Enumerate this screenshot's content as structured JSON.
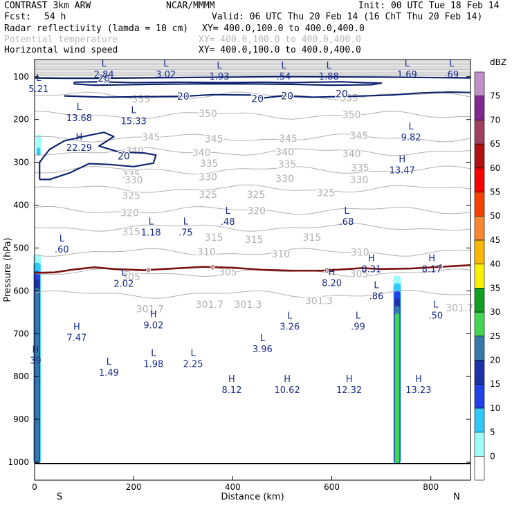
{
  "header": {
    "model": "CONTRAST  3km ARW",
    "org": "NCAR/MMMM",
    "init": "Init: 00 UTC Tue 18 Feb 14",
    "fcst_label": "Fcst:",
    "fcst_value": "54 h",
    "valid": "Valid: 06 UTC Thu 20 Feb 14 (16 ChT Thu 20 Feb 14)",
    "fields": [
      {
        "name": "Radar reflectivity (lamda = 10 cm)",
        "xy": "XY= 400.0,100.0 to 400.0,400.0",
        "color": "#000000"
      },
      {
        "name": "Potential temperature",
        "xy": "XY= 400.0,100.0 to 400.0,400.0",
        "color": "#b8b8b8"
      },
      {
        "name": "Horizontal wind speed",
        "xy": "XY= 400.0,100.0 to 400.0,400.0",
        "color": "#000000"
      }
    ]
  },
  "chart_data": {
    "type": "cross-section",
    "xlabel": "Distance (km)",
    "ylabel": "Pressure (hPa)",
    "xlim": [
      0,
      880
    ],
    "ylim": [
      1000,
      60
    ],
    "x_ticks": [
      "0",
      "200",
      "400",
      "600",
      "800"
    ],
    "y_ticks": [
      "100",
      "200",
      "300",
      "400",
      "500",
      "600",
      "700",
      "800",
      "900",
      "1000"
    ],
    "x_end_labels": [
      "S",
      "N"
    ],
    "colorbar": {
      "title": "dBZ",
      "levels": [
        "0",
        "5",
        "10",
        "15",
        "20",
        "25",
        "30",
        "35",
        "40",
        "45",
        "50",
        "55",
        "60",
        "65",
        "70",
        "75"
      ],
      "colors": [
        "#ffffff",
        "#9ffcfc",
        "#30c8f8",
        "#2040e8",
        "#2030a8",
        "#3878a8",
        "#40d850",
        "#10a020",
        "#f8f000",
        "#f8b800",
        "#f88830",
        "#f84000",
        "#f80000",
        "#b01010",
        "#a04060",
        "#802890",
        "#c090c8"
      ]
    },
    "theta_levels": [
      {
        "value": 355,
        "p": 145
      },
      {
        "value": 350,
        "p": 190
      },
      {
        "value": 345,
        "p": 243
      },
      {
        "value": 340,
        "p": 275
      },
      {
        "value": 335,
        "p": 318
      },
      {
        "value": 330,
        "p": 362
      },
      {
        "value": 325,
        "p": 412
      },
      {
        "value": 320,
        "p": 452
      },
      {
        "value": 315,
        "p": 510
      },
      {
        "value": 310,
        "p": 558
      },
      {
        "value": 305,
        "p": 608
      }
    ],
    "theta_labels": [
      {
        "text": "355",
        "x": 215,
        "p": 152
      },
      {
        "text": "355",
        "x": 635,
        "p": 150
      },
      {
        "text": "350",
        "x": 350,
        "p": 186
      },
      {
        "text": "350",
        "x": 640,
        "p": 188
      },
      {
        "text": "345",
        "x": 235,
        "p": 241
      },
      {
        "text": "345",
        "x": 362,
        "p": 245
      },
      {
        "text": "345",
        "x": 512,
        "p": 244
      },
      {
        "text": "345",
        "x": 655,
        "p": 238
      },
      {
        "text": "340",
        "x": 202,
        "p": 273
      },
      {
        "text": "340",
        "x": 337,
        "p": 277
      },
      {
        "text": "340",
        "x": 505,
        "p": 276
      },
      {
        "text": "340",
        "x": 640,
        "p": 280
      },
      {
        "text": "335",
        "x": 195,
        "p": 328
      },
      {
        "text": "335",
        "x": 352,
        "p": 302
      },
      {
        "text": "335",
        "x": 510,
        "p": 305
      },
      {
        "text": "335",
        "x": 657,
        "p": 313
      },
      {
        "text": "330",
        "x": 200,
        "p": 341
      },
      {
        "text": "330",
        "x": 350,
        "p": 334
      },
      {
        "text": "330",
        "x": 505,
        "p": 338
      },
      {
        "text": "330",
        "x": 655,
        "p": 340
      },
      {
        "text": "325",
        "x": 195,
        "p": 377
      },
      {
        "text": "325",
        "x": 350,
        "p": 375
      },
      {
        "text": "325",
        "x": 447,
        "p": 375
      },
      {
        "text": "325",
        "x": 588,
        "p": 371
      },
      {
        "text": "320",
        "x": 192,
        "p": 418
      },
      {
        "text": "320",
        "x": 448,
        "p": 413
      },
      {
        "text": "315",
        "x": 195,
        "p": 462
      },
      {
        "text": "315",
        "x": 362,
        "p": 475
      },
      {
        "text": "315",
        "x": 443,
        "p": 480
      },
      {
        "text": "315",
        "x": 560,
        "p": 475
      },
      {
        "text": "310",
        "x": 347,
        "p": 509
      },
      {
        "text": "310",
        "x": 497,
        "p": 514
      },
      {
        "text": "310",
        "x": 657,
        "p": 510
      },
      {
        "text": "305",
        "x": 195,
        "p": 567
      },
      {
        "text": "305",
        "x": 390,
        "p": 556
      },
      {
        "text": "305",
        "x": 655,
        "p": 560
      },
      {
        "text": "301.7",
        "x": 233,
        "p": 642
      },
      {
        "text": "301.7",
        "x": 353,
        "p": 632
      },
      {
        "text": "301.3",
        "x": 431,
        "p": 632
      },
      {
        "text": "301.3",
        "x": 574,
        "p": 623
      },
      {
        "text": "301.7",
        "x": 858,
        "p": 640
      }
    ],
    "extrema": [
      {
        "type": "L",
        "value": "2.84",
        "x": 140,
        "p": 76
      },
      {
        "type": "L",
        "value": "3.02",
        "x": 265,
        "p": 76
      },
      {
        "type": "L",
        "value": "1.93",
        "x": 373,
        "p": 81
      },
      {
        "type": "L",
        "value": ".54",
        "x": 503,
        "p": 81
      },
      {
        "type": "L",
        "value": "1.88",
        "x": 594,
        "p": 81
      },
      {
        "type": "L",
        "value": "1.69",
        "x": 752,
        "p": 76
      },
      {
        "type": "L",
        "value": ".69",
        "x": 842,
        "p": 76
      },
      {
        "type": "L",
        "value": "5.21",
        "x": 8,
        "p": 110
      },
      {
        "type": "L",
        "value": "13.68",
        "x": 90,
        "p": 178
      },
      {
        "type": "L",
        "value": "15.33",
        "x": 200,
        "p": 185
      },
      {
        "type": "H",
        "value": "22.29",
        "x": 90,
        "p": 247
      },
      {
        "type": "L",
        "value": "9.82",
        "x": 760,
        "p": 223
      },
      {
        "type": "H",
        "value": "13.47",
        "x": 742,
        "p": 300
      },
      {
        "type": "L",
        "value": ".48",
        "x": 390,
        "p": 420
      },
      {
        "type": "L",
        "value": ".68",
        "x": 630,
        "p": 420
      },
      {
        "type": "L",
        "value": "1.18",
        "x": 235,
        "p": 445
      },
      {
        "type": "L",
        "value": ".75",
        "x": 305,
        "p": 445
      },
      {
        "type": "L",
        "value": ".60",
        "x": 55,
        "p": 485
      },
      {
        "type": "H",
        "value": "8.31",
        "x": 680,
        "p": 531
      },
      {
        "type": "H",
        "value": "8.17",
        "x": 802,
        "p": 531
      },
      {
        "type": "L",
        "value": "2.02",
        "x": 180,
        "p": 565
      },
      {
        "type": "H",
        "value": "8.20",
        "x": 600,
        "p": 563
      },
      {
        "type": "L",
        "value": ".86",
        "x": 690,
        "p": 594
      },
      {
        "type": "L",
        "value": ".50",
        "x": 810,
        "p": 639
      },
      {
        "type": "H",
        "value": "9.02",
        "x": 240,
        "p": 662
      },
      {
        "type": "L",
        "value": "3.26",
        "x": 515,
        "p": 665
      },
      {
        "type": "L",
        "value": ".99",
        "x": 653,
        "p": 665
      },
      {
        "type": "H",
        "value": "7.47",
        "x": 85,
        "p": 691
      },
      {
        "type": "L",
        "value": "3.96",
        "x": 460,
        "p": 717
      },
      {
        "type": "L",
        "value": "1.98",
        "x": 240,
        "p": 752
      },
      {
        "type": "L",
        "value": "2.25",
        "x": 320,
        "p": 752
      },
      {
        "type": "L",
        "value": "1.49",
        "x": 150,
        "p": 772
      },
      {
        "type": "H",
        "value": "8.12",
        "x": 398,
        "p": 813
      },
      {
        "type": "H",
        "value": "10.62",
        "x": 510,
        "p": 813
      },
      {
        "type": "H",
        "value": "12.32",
        "x": 635,
        "p": 813
      },
      {
        "type": "H",
        "value": "13.23",
        "x": 775,
        "p": 813
      },
      {
        "type": "H",
        "value": "39",
        "x": 2,
        "p": 744
      }
    ],
    "wind_20_contours": [
      {
        "label": "20",
        "points": [
          [
            0,
            103
          ],
          [
            60,
            104
          ],
          [
            120,
            104
          ],
          [
            300,
            102
          ],
          [
            500,
            100
          ],
          [
            700,
            101
          ],
          [
            880,
            103
          ]
        ]
      },
      {
        "label": "20",
        "points": [
          [
            80,
            113
          ],
          [
            130,
            112
          ],
          [
            200,
            114
          ],
          [
            300,
            113
          ],
          [
            380,
            114
          ],
          [
            460,
            113
          ],
          [
            520,
            114
          ],
          [
            560,
            113
          ],
          [
            620,
            112
          ],
          [
            660,
            114
          ],
          [
            700,
            115
          ],
          [
            680,
            119
          ],
          [
            600,
            120
          ],
          [
            520,
            118
          ],
          [
            440,
            117
          ],
          [
            320,
            117
          ],
          [
            240,
            118
          ],
          [
            180,
            119
          ],
          [
            120,
            120
          ],
          [
            80,
            117
          ],
          [
            80,
            113
          ]
        ]
      },
      {
        "label": "20",
        "points": [
          [
            60,
            145
          ],
          [
            140,
            148
          ],
          [
            210,
            147
          ],
          [
            300,
            146
          ],
          [
            360,
            142
          ],
          [
            440,
            143
          ],
          [
            460,
            150
          ],
          [
            500,
            145
          ],
          [
            560,
            148
          ],
          [
            640,
            146
          ],
          [
            720,
            143
          ],
          [
            780,
            138
          ],
          [
            840,
            136
          ],
          [
            880,
            137
          ]
        ]
      },
      {
        "label": "20",
        "points": [
          [
            10,
            340
          ],
          [
            10,
            300
          ],
          [
            30,
            270
          ],
          [
            60,
            250
          ],
          [
            110,
            237
          ],
          [
            140,
            230
          ],
          [
            160,
            240
          ],
          [
            130,
            262
          ],
          [
            170,
            276
          ],
          [
            220,
            278
          ],
          [
            245,
            283
          ],
          [
            240,
            302
          ],
          [
            200,
            310
          ],
          [
            150,
            305
          ],
          [
            110,
            303
          ],
          [
            70,
            325
          ],
          [
            30,
            340
          ],
          [
            10,
            340
          ]
        ]
      }
    ],
    "freezing_level": {
      "label": "0",
      "points": [
        [
          0,
          558
        ],
        [
          40,
          557
        ],
        [
          80,
          550
        ],
        [
          120,
          545
        ],
        [
          160,
          549
        ],
        [
          220,
          552
        ],
        [
          280,
          548
        ],
        [
          340,
          544
        ],
        [
          400,
          546
        ],
        [
          460,
          551
        ],
        [
          520,
          553
        ],
        [
          580,
          553
        ],
        [
          620,
          550
        ],
        [
          660,
          547
        ],
        [
          700,
          549
        ],
        [
          760,
          548
        ],
        [
          820,
          544
        ],
        [
          880,
          540
        ]
      ]
    },
    "reflectivity_columns": [
      {
        "x_center": 5,
        "p_top": 515,
        "width_km": 16,
        "peak_dbz": 25
      },
      {
        "x_center": 732,
        "p_top": 565,
        "width_km": 16,
        "peak_dbz": 30
      },
      {
        "x_center": 8,
        "p_top": 235,
        "width_km": 10,
        "peak_dbz": 10
      }
    ]
  }
}
